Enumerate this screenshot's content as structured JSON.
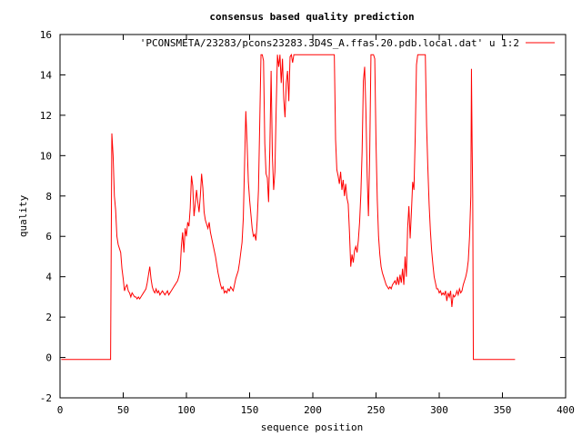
{
  "chart_data": {
    "type": "line",
    "title": "consensus based quality prediction",
    "xlabel": "sequence position",
    "ylabel": "quality",
    "xlim": [
      0,
      400
    ],
    "ylim": [
      -2,
      16
    ],
    "xticks": [
      0,
      50,
      100,
      150,
      200,
      250,
      300,
      350,
      400
    ],
    "yticks": [
      -2,
      0,
      2,
      4,
      6,
      8,
      10,
      12,
      14,
      16
    ],
    "grid": false,
    "legend_position": "top-right",
    "series": [
      {
        "name": "'PCONSMETA/23283/pcons23283.3D4S_A.ffas.20.pdb.local.dat' u 1:2",
        "color": "#ff0000",
        "points": [
          [
            1,
            -0.1
          ],
          [
            40,
            -0.1
          ],
          [
            40.5,
            5.6
          ],
          [
            41,
            11.1
          ],
          [
            42,
            10.0
          ],
          [
            43,
            8.0
          ],
          [
            44,
            7.3
          ],
          [
            45,
            6.0
          ],
          [
            46,
            5.6
          ],
          [
            47,
            5.4
          ],
          [
            48,
            5.2
          ],
          [
            49,
            4.4
          ],
          [
            50,
            3.9
          ],
          [
            51,
            3.3
          ],
          [
            52,
            3.5
          ],
          [
            53,
            3.6
          ],
          [
            54,
            3.3
          ],
          [
            55,
            3.2
          ],
          [
            56,
            3.0
          ],
          [
            57,
            3.2
          ],
          [
            58,
            3.1
          ],
          [
            59,
            3.0
          ],
          [
            60,
            3.0
          ],
          [
            61,
            2.9
          ],
          [
            62,
            3.0
          ],
          [
            63,
            2.9
          ],
          [
            64,
            3.0
          ],
          [
            65,
            3.1
          ],
          [
            66,
            3.2
          ],
          [
            67,
            3.3
          ],
          [
            68,
            3.4
          ],
          [
            69,
            3.7
          ],
          [
            70,
            4.1
          ],
          [
            71,
            4.5
          ],
          [
            72,
            3.9
          ],
          [
            73,
            3.5
          ],
          [
            74,
            3.3
          ],
          [
            75,
            3.2
          ],
          [
            76,
            3.4
          ],
          [
            77,
            3.2
          ],
          [
            78,
            3.3
          ],
          [
            79,
            3.1
          ],
          [
            80,
            3.2
          ],
          [
            81,
            3.3
          ],
          [
            82,
            3.2
          ],
          [
            83,
            3.1
          ],
          [
            84,
            3.2
          ],
          [
            85,
            3.3
          ],
          [
            86,
            3.1
          ],
          [
            87,
            3.2
          ],
          [
            88,
            3.3
          ],
          [
            89,
            3.4
          ],
          [
            90,
            3.5
          ],
          [
            91,
            3.6
          ],
          [
            92,
            3.7
          ],
          [
            93,
            3.8
          ],
          [
            94,
            4.0
          ],
          [
            95,
            4.3
          ],
          [
            96,
            5.5
          ],
          [
            97,
            6.2
          ],
          [
            98,
            5.2
          ],
          [
            99,
            6.4
          ],
          [
            100,
            6.0
          ],
          [
            101,
            6.7
          ],
          [
            102,
            6.5
          ],
          [
            103,
            7.4
          ],
          [
            104,
            9.0
          ],
          [
            105,
            8.5
          ],
          [
            106,
            7.0
          ],
          [
            107,
            7.6
          ],
          [
            108,
            8.3
          ],
          [
            109,
            7.7
          ],
          [
            110,
            7.2
          ],
          [
            111,
            8.0
          ],
          [
            112,
            9.1
          ],
          [
            113,
            8.4
          ],
          [
            114,
            7.2
          ],
          [
            115,
            6.8
          ],
          [
            116,
            6.6
          ],
          [
            117,
            6.4
          ],
          [
            118,
            6.7
          ],
          [
            119,
            6.2
          ],
          [
            120,
            5.9
          ],
          [
            121,
            5.6
          ],
          [
            122,
            5.3
          ],
          [
            123,
            5.0
          ],
          [
            124,
            4.6
          ],
          [
            125,
            4.2
          ],
          [
            126,
            3.9
          ],
          [
            127,
            3.6
          ],
          [
            128,
            3.4
          ],
          [
            129,
            3.5
          ],
          [
            130,
            3.2
          ],
          [
            131,
            3.3
          ],
          [
            132,
            3.2
          ],
          [
            133,
            3.4
          ],
          [
            134,
            3.3
          ],
          [
            135,
            3.5
          ],
          [
            136,
            3.4
          ],
          [
            137,
            3.3
          ],
          [
            138,
            3.6
          ],
          [
            139,
            3.9
          ],
          [
            140,
            4.1
          ],
          [
            141,
            4.3
          ],
          [
            142,
            4.7
          ],
          [
            143,
            5.2
          ],
          [
            144,
            5.7
          ],
          [
            145,
            6.9
          ],
          [
            146,
            9.6
          ],
          [
            147,
            12.2
          ],
          [
            148,
            10.6
          ],
          [
            149,
            8.7
          ],
          [
            150,
            7.8
          ],
          [
            151,
            7.1
          ],
          [
            152,
            6.4
          ],
          [
            153,
            6.0
          ],
          [
            154,
            6.1
          ],
          [
            155,
            5.8
          ],
          [
            156,
            6.8
          ],
          [
            157,
            8.3
          ],
          [
            158,
            11.6
          ],
          [
            159,
            15.0
          ],
          [
            160,
            15.0
          ],
          [
            161,
            14.7
          ],
          [
            162,
            10.6
          ],
          [
            163,
            9.1
          ],
          [
            164,
            8.9
          ],
          [
            165,
            7.7
          ],
          [
            166,
            10.4
          ],
          [
            167,
            14.2
          ],
          [
            168,
            10.0
          ],
          [
            169,
            8.3
          ],
          [
            170,
            9.2
          ],
          [
            171,
            12.3
          ],
          [
            172,
            15.0
          ],
          [
            173,
            14.4
          ],
          [
            174,
            15.0
          ],
          [
            175,
            13.6
          ],
          [
            176,
            14.8
          ],
          [
            177,
            12.8
          ],
          [
            178,
            11.9
          ],
          [
            179,
            13.6
          ],
          [
            180,
            14.2
          ],
          [
            181,
            12.7
          ],
          [
            182,
            14.9
          ],
          [
            183,
            15.0
          ],
          [
            184,
            14.6
          ],
          [
            185,
            15.0
          ],
          [
            190,
            15.0
          ],
          [
            195,
            15.0
          ],
          [
            200,
            15.0
          ],
          [
            205,
            15.0
          ],
          [
            210,
            15.0
          ],
          [
            215,
            15.0
          ],
          [
            217,
            15.0
          ],
          [
            218,
            10.8
          ],
          [
            219,
            9.3
          ],
          [
            220,
            9.0
          ],
          [
            221,
            8.6
          ],
          [
            222,
            9.2
          ],
          [
            223,
            8.3
          ],
          [
            224,
            8.8
          ],
          [
            225,
            8.0
          ],
          [
            226,
            8.6
          ],
          [
            227,
            7.9
          ],
          [
            228,
            7.6
          ],
          [
            229,
            6.2
          ],
          [
            230,
            4.5
          ],
          [
            231,
            5.1
          ],
          [
            232,
            4.7
          ],
          [
            233,
            5.3
          ],
          [
            234,
            5.5
          ],
          [
            235,
            5.2
          ],
          [
            236,
            5.8
          ],
          [
            237,
            6.7
          ],
          [
            238,
            8.1
          ],
          [
            239,
            10.2
          ],
          [
            240,
            13.7
          ],
          [
            241,
            14.4
          ],
          [
            242,
            12.2
          ],
          [
            243,
            9.0
          ],
          [
            244,
            7.0
          ],
          [
            245,
            10.1
          ],
          [
            246,
            15.0
          ],
          [
            247,
            15.0
          ],
          [
            248,
            15.0
          ],
          [
            249,
            14.8
          ],
          [
            250,
            10.6
          ],
          [
            251,
            7.8
          ],
          [
            252,
            6.0
          ],
          [
            253,
            5.1
          ],
          [
            254,
            4.5
          ],
          [
            255,
            4.2
          ],
          [
            256,
            4.0
          ],
          [
            257,
            3.8
          ],
          [
            258,
            3.6
          ],
          [
            259,
            3.5
          ],
          [
            260,
            3.4
          ],
          [
            261,
            3.5
          ],
          [
            262,
            3.4
          ],
          [
            263,
            3.6
          ],
          [
            264,
            3.7
          ],
          [
            265,
            3.8
          ],
          [
            266,
            3.6
          ],
          [
            267,
            4.0
          ],
          [
            268,
            3.6
          ],
          [
            269,
            4.1
          ],
          [
            270,
            3.7
          ],
          [
            271,
            4.4
          ],
          [
            272,
            3.6
          ],
          [
            273,
            5.0
          ],
          [
            274,
            4.0
          ],
          [
            275,
            6.4
          ],
          [
            276,
            7.5
          ],
          [
            277,
            5.9
          ],
          [
            278,
            7.2
          ],
          [
            279,
            8.7
          ],
          [
            280,
            8.3
          ],
          [
            281,
            10.9
          ],
          [
            282,
            14.5
          ],
          [
            283,
            15.0
          ],
          [
            284,
            15.0
          ],
          [
            286,
            15.0
          ],
          [
            288,
            15.0
          ],
          [
            289,
            15.0
          ],
          [
            290,
            11.5
          ],
          [
            291,
            9.4
          ],
          [
            292,
            7.6
          ],
          [
            293,
            6.3
          ],
          [
            294,
            5.3
          ],
          [
            295,
            4.6
          ],
          [
            296,
            4.0
          ],
          [
            297,
            3.7
          ],
          [
            298,
            3.4
          ],
          [
            299,
            3.4
          ],
          [
            300,
            3.2
          ],
          [
            301,
            3.3
          ],
          [
            302,
            3.1
          ],
          [
            303,
            3.2
          ],
          [
            304,
            3.1
          ],
          [
            305,
            3.3
          ],
          [
            306,
            2.8
          ],
          [
            307,
            3.2
          ],
          [
            308,
            3.0
          ],
          [
            309,
            3.3
          ],
          [
            310,
            2.5
          ],
          [
            311,
            3.1
          ],
          [
            312,
            3.0
          ],
          [
            313,
            3.1
          ],
          [
            314,
            3.3
          ],
          [
            315,
            3.1
          ],
          [
            316,
            3.4
          ],
          [
            317,
            3.2
          ],
          [
            318,
            3.3
          ],
          [
            319,
            3.6
          ],
          [
            320,
            3.8
          ],
          [
            321,
            4.0
          ],
          [
            322,
            4.3
          ],
          [
            323,
            4.8
          ],
          [
            324,
            6.0
          ],
          [
            325,
            8.0
          ],
          [
            325.5,
            14.3
          ],
          [
            326,
            10.7
          ],
          [
            326.5,
            8.0
          ],
          [
            327,
            -0.1
          ],
          [
            330,
            -0.1
          ],
          [
            340,
            -0.1
          ],
          [
            350,
            -0.1
          ],
          [
            360,
            -0.1
          ]
        ]
      }
    ]
  }
}
